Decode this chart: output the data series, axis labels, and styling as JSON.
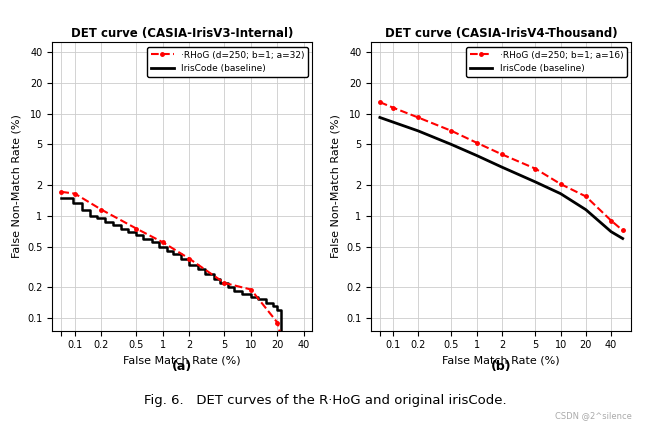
{
  "title_left": "DET curve (CASIA-IrisV3-Internal)",
  "title_right": "DET curve (CASIA-IrisV4-Thousand)",
  "xlabel": "False Match Rate (%)",
  "ylabel": "False Non-Match Rate (%)",
  "label_a": "(a)",
  "label_b": "(b)",
  "caption": "Fig. 6.   DET curves of the R·HoG and original irisCode.",
  "watermark": "CSDN @2^silence",
  "legend_rhog_left": "·RHoG (d=250; b=1; a=32)",
  "legend_rhog_right": "·RHoG (d=250; b=1; a=16)",
  "legend_iris": "IrisCode (baseline)",
  "left_xticks": [
    0.07,
    0.1,
    0.2,
    0.5,
    1,
    2,
    5,
    10,
    20,
    40
  ],
  "left_xtick_labels": [
    "",
    "0.1",
    "0.2",
    "0.5",
    "1",
    "2",
    "5",
    "10",
    "20",
    "40"
  ],
  "right_xticks": [
    0.07,
    0.1,
    0.2,
    0.5,
    1,
    2,
    5,
    10,
    20,
    40
  ],
  "right_xtick_labels": [
    "",
    "0.1",
    "0.2",
    "0.5",
    "1",
    "2",
    "5",
    "10",
    "20",
    "40"
  ],
  "left_yticks": [
    0.1,
    0.2,
    0.5,
    1,
    2,
    5,
    10,
    20,
    40
  ],
  "left_ytick_labels": [
    "0.1",
    "0.2",
    "0.5",
    "1",
    "2",
    "5",
    "10",
    "20",
    "40"
  ],
  "right_yticks": [
    0.1,
    0.2,
    0.5,
    1,
    2,
    5,
    10,
    20,
    40
  ],
  "right_ytick_labels": [
    "0.1",
    "0.2",
    "0.5",
    "1",
    "2",
    "5",
    "10",
    "20",
    "40"
  ],
  "left_xlim": [
    0.055,
    50
  ],
  "left_ylim": [
    0.075,
    50
  ],
  "right_xlim": [
    0.055,
    70
  ],
  "right_ylim": [
    0.075,
    50
  ],
  "left_rhog_x": [
    0.07,
    0.1,
    0.2,
    0.5,
    1.0,
    2.0,
    5.0,
    10.0,
    20.0,
    23.0
  ],
  "left_rhog_y": [
    1.72,
    1.65,
    1.15,
    0.75,
    0.55,
    0.38,
    0.22,
    0.19,
    0.09,
    0.055
  ],
  "left_iris_x": [
    0.07,
    0.095,
    0.12,
    0.15,
    0.18,
    0.22,
    0.27,
    0.33,
    0.4,
    0.5,
    0.6,
    0.75,
    0.9,
    1.1,
    1.3,
    1.6,
    2.0,
    2.5,
    3.0,
    3.8,
    4.5,
    5.5,
    6.5,
    8.0,
    10.0,
    12.0,
    15.0,
    18.0,
    20.0,
    22.0
  ],
  "left_iris_y": [
    1.5,
    1.35,
    1.15,
    1.0,
    0.95,
    0.88,
    0.82,
    0.75,
    0.7,
    0.65,
    0.6,
    0.55,
    0.5,
    0.45,
    0.42,
    0.38,
    0.33,
    0.3,
    0.27,
    0.24,
    0.22,
    0.2,
    0.185,
    0.17,
    0.16,
    0.155,
    0.14,
    0.13,
    0.12,
    0.07
  ],
  "right_rhog_x": [
    0.07,
    0.1,
    0.2,
    0.5,
    1.0,
    2.0,
    5.0,
    10.0,
    20.0,
    40.0,
    55.0
  ],
  "right_rhog_y": [
    13.0,
    11.5,
    9.2,
    6.8,
    5.2,
    4.0,
    2.9,
    2.05,
    1.55,
    0.9,
    0.72
  ],
  "right_iris_x": [
    0.07,
    0.1,
    0.2,
    0.5,
    1.0,
    2.0,
    5.0,
    10.0,
    20.0,
    40.0,
    55.0
  ],
  "right_iris_y": [
    9.2,
    8.3,
    6.8,
    5.0,
    3.9,
    3.0,
    2.15,
    1.65,
    1.15,
    0.7,
    0.6
  ],
  "background_color": "#ffffff",
  "grid_color": "#cccccc",
  "rhog_color": "#ff0000",
  "iris_color": "#000000"
}
